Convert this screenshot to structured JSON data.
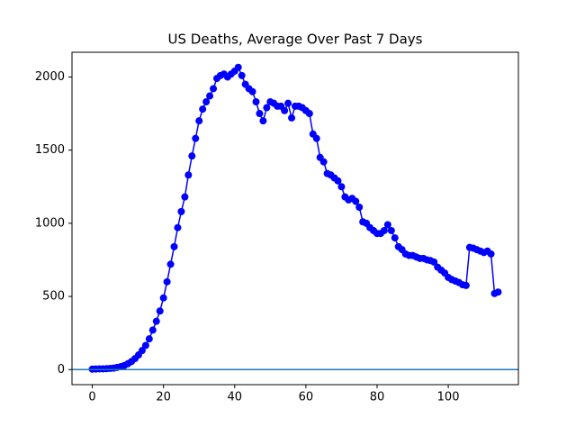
{
  "chart_data": {
    "type": "line",
    "title": "US Deaths, Average Over Past 7 Days",
    "x": [
      0,
      1,
      2,
      3,
      4,
      5,
      6,
      7,
      8,
      9,
      10,
      11,
      12,
      13,
      14,
      15,
      16,
      17,
      18,
      19,
      20,
      21,
      22,
      23,
      24,
      25,
      26,
      27,
      28,
      29,
      30,
      31,
      32,
      33,
      34,
      35,
      36,
      37,
      38,
      39,
      40,
      41,
      42,
      43,
      44,
      45,
      46,
      47,
      48,
      49,
      50,
      51,
      52,
      53,
      54,
      55,
      56,
      57,
      58,
      59,
      60,
      61,
      62,
      63,
      64,
      65,
      66,
      67,
      68,
      69,
      70,
      71,
      72,
      73,
      74,
      75,
      76,
      77,
      78,
      79,
      80,
      81,
      82,
      83,
      84,
      85,
      86,
      87,
      88,
      89,
      90,
      91,
      92,
      93,
      94,
      95,
      96,
      97,
      98,
      99,
      100,
      101,
      102,
      103,
      104,
      105,
      106,
      107,
      108,
      109,
      110,
      111,
      112,
      113,
      114
    ],
    "series": [
      {
        "color": "#0000ff",
        "values": [
          3,
          4,
          5,
          5,
          6,
          8,
          10,
          15,
          20,
          28,
          40,
          55,
          75,
          100,
          130,
          165,
          210,
          270,
          330,
          400,
          490,
          600,
          720,
          840,
          970,
          1080,
          1180,
          1330,
          1460,
          1580,
          1700,
          1780,
          1830,
          1870,
          1920,
          1990,
          2010,
          2020,
          2000,
          2020,
          2040,
          2066,
          2010,
          1950,
          1920,
          1900,
          1830,
          1750,
          1700,
          1790,
          1830,
          1820,
          1800,
          1800,
          1770,
          1820,
          1720,
          1800,
          1800,
          1790,
          1770,
          1750,
          1610,
          1580,
          1450,
          1420,
          1340,
          1330,
          1310,
          1290,
          1250,
          1180,
          1160,
          1170,
          1150,
          1110,
          1010,
          1000,
          970,
          950,
          930,
          930,
          950,
          990,
          950,
          900,
          840,
          820,
          790,
          780,
          780,
          770,
          760,
          760,
          750,
          745,
          735,
          700,
          680,
          660,
          630,
          615,
          605,
          595,
          580,
          575,
          835,
          830,
          820,
          810,
          800,
          810,
          790,
          520,
          530
        ]
      }
    ],
    "reference_line": {
      "value": 0,
      "color": "#1f77b4"
    },
    "xlim": [
      -5.7,
      119.7
    ],
    "ylim": [
      -103,
      2169
    ],
    "xticks": [
      0,
      20,
      40,
      60,
      80,
      100
    ],
    "yticks": [
      0,
      500,
      1000,
      1500,
      2000
    ]
  }
}
